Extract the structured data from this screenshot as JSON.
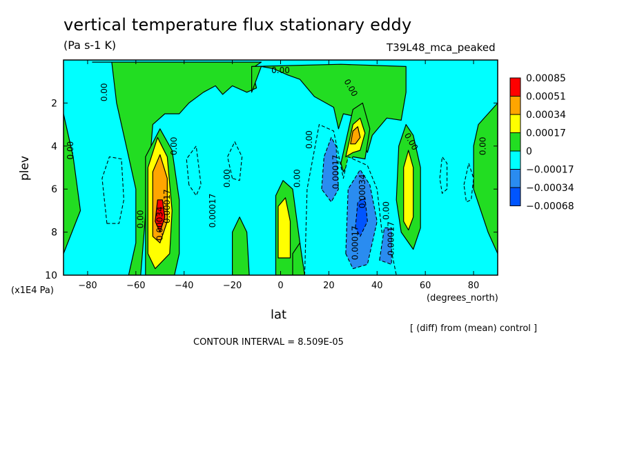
{
  "chart_data": {
    "type": "heatmap",
    "title": "vertical temperature flux stationary eddy",
    "units": "(Pa s-1 K)",
    "run_label": "T39L48_mca_peaked",
    "xlabel": "lat",
    "x_unit": "(degrees_north)",
    "ylabel": "plev",
    "y_unit": "(x1E4 Pa)",
    "xlim": [
      -90,
      90
    ],
    "ylim": [
      10,
      0
    ],
    "x_ticks": [
      -80,
      -60,
      -40,
      -20,
      0,
      20,
      40,
      60,
      80
    ],
    "y_ticks": [
      2,
      4,
      6,
      8,
      10
    ],
    "colorbar": {
      "colors": [
        "#0055ff",
        "#2a8cf0",
        "#00ffff",
        "#22dd22",
        "#ffff00",
        "#ffa500",
        "#ff0000"
      ],
      "labels": [
        "-0.00068",
        "-0.00034",
        "-0.00017",
        "0",
        "0.00017",
        "0.00034",
        "0.00051",
        "0.00085"
      ]
    },
    "background_color": "#00ffff",
    "regions": [
      {
        "level": "0",
        "points": [
          [
            -90,
            2.5
          ],
          [
            -86,
            4.5
          ],
          [
            -83,
            7
          ],
          [
            -90,
            9
          ]
        ]
      },
      {
        "level": "0",
        "points": [
          [
            -78,
            0.1
          ],
          [
            -70,
            0.1
          ],
          [
            -68,
            2
          ],
          [
            -64,
            4
          ],
          [
            -60,
            6
          ],
          [
            -60,
            8.5
          ],
          [
            -63,
            10
          ],
          [
            -58,
            10
          ],
          [
            -53,
            3
          ],
          [
            -48,
            2.5
          ],
          [
            -42,
            2.5
          ],
          [
            -38,
            2
          ],
          [
            -32,
            1.5
          ],
          [
            -27,
            1.2
          ],
          [
            -24,
            1.6
          ],
          [
            -20,
            1.2
          ],
          [
            -14,
            1.5
          ],
          [
            -10,
            1.3
          ],
          [
            -12,
            0.4
          ],
          [
            -8,
            0.1
          ],
          [
            -78,
            0.1
          ]
        ]
      },
      {
        "level": "0",
        "points": [
          [
            -12,
            1.5
          ],
          [
            -8,
            0.3
          ],
          [
            -3,
            0.4
          ],
          [
            3,
            0.7
          ],
          [
            8,
            0.9
          ],
          [
            14,
            1.7
          ],
          [
            22,
            2.2
          ],
          [
            24,
            3.2
          ],
          [
            26,
            2.5
          ],
          [
            30,
            2.6
          ],
          [
            36,
            4.3
          ],
          [
            38,
            3.5
          ],
          [
            44,
            2.7
          ],
          [
            50,
            2.8
          ],
          [
            52,
            1.5
          ],
          [
            52,
            0.3
          ],
          [
            25,
            0.2
          ],
          [
            -12,
            0.3
          ]
        ]
      },
      {
        "level": "0",
        "points": [
          [
            -56,
            9.6
          ],
          [
            -56,
            4.5
          ],
          [
            -50,
            3.2
          ],
          [
            -45,
            4.2
          ],
          [
            -42,
            6.5
          ],
          [
            -42,
            9
          ],
          [
            -44,
            10
          ],
          [
            -56,
            10
          ]
        ]
      },
      {
        "level": "0",
        "points": [
          [
            -2,
            10
          ],
          [
            -2,
            6.3
          ],
          [
            1,
            5.6
          ],
          [
            5,
            6
          ],
          [
            8,
            8.5
          ],
          [
            9,
            10
          ]
        ]
      },
      {
        "level": "0",
        "points": [
          [
            25,
            4.8
          ],
          [
            30,
            2.3
          ],
          [
            34,
            2
          ],
          [
            37,
            3.2
          ],
          [
            35,
            4.6
          ],
          [
            30,
            4.5
          ],
          [
            26,
            5.2
          ]
        ]
      },
      {
        "level": "0",
        "points": [
          [
            48,
            6.5
          ],
          [
            49,
            4
          ],
          [
            52,
            3
          ],
          [
            55,
            3.5
          ],
          [
            58,
            5
          ],
          [
            58,
            7.8
          ],
          [
            55,
            8.8
          ],
          [
            50,
            8
          ]
        ]
      },
      {
        "level": "0",
        "points": [
          [
            80,
            4
          ],
          [
            82,
            3
          ],
          [
            86,
            2.5
          ],
          [
            90,
            2
          ],
          [
            90,
            9
          ],
          [
            86,
            8
          ],
          [
            80,
            6
          ]
        ]
      },
      {
        "level": "0",
        "points": [
          [
            -20,
            10
          ],
          [
            -20,
            8
          ],
          [
            -17,
            7.3
          ],
          [
            -14,
            8
          ],
          [
            -13,
            10
          ]
        ]
      },
      {
        "level": "0",
        "points": [
          [
            5,
            10
          ],
          [
            5,
            9
          ],
          [
            8,
            8.5
          ],
          [
            10,
            10
          ]
        ]
      },
      {
        "level": "0.00017",
        "points": [
          [
            -55,
            9
          ],
          [
            -55,
            5
          ],
          [
            -51,
            3.6
          ],
          [
            -47,
            4.5
          ],
          [
            -45,
            7
          ],
          [
            -46,
            9
          ],
          [
            -52,
            9.7
          ]
        ]
      },
      {
        "level": "0.00034",
        "points": [
          [
            -53,
            8.2
          ],
          [
            -53,
            5.2
          ],
          [
            -50,
            4.4
          ],
          [
            -47,
            5.5
          ],
          [
            -47,
            7.5
          ],
          [
            -50,
            8.5
          ]
        ]
      },
      {
        "level": "0.00051",
        "points": [
          [
            -52,
            7.5
          ],
          [
            -51,
            6.5
          ],
          [
            -49,
            6.5
          ],
          [
            -48,
            7.3
          ],
          [
            -50,
            8
          ]
        ]
      },
      {
        "level": "0.00017",
        "points": [
          [
            -1,
            9.2
          ],
          [
            -1,
            6.8
          ],
          [
            2,
            6.4
          ],
          [
            4,
            7.5
          ],
          [
            4,
            9.2
          ]
        ]
      },
      {
        "level": "0.00017",
        "points": [
          [
            27,
            4.5
          ],
          [
            30,
            3
          ],
          [
            33,
            2.7
          ],
          [
            35,
            3.4
          ],
          [
            33,
            4.2
          ],
          [
            30,
            4.3
          ]
        ]
      },
      {
        "level": "0.00034",
        "points": [
          [
            29,
            3.9
          ],
          [
            30,
            3.3
          ],
          [
            32,
            3.1
          ],
          [
            33,
            3.6
          ],
          [
            31,
            3.9
          ]
        ]
      },
      {
        "level": "0.00017",
        "points": [
          [
            51,
            7.5
          ],
          [
            51,
            5
          ],
          [
            53,
            4.2
          ],
          [
            55,
            5
          ],
          [
            55,
            7.3
          ],
          [
            53,
            7.9
          ]
        ]
      },
      {
        "level": "-0.00017",
        "points": [
          [
            -72,
            7.6
          ],
          [
            -74,
            5.5
          ],
          [
            -71,
            4.5
          ],
          [
            -66,
            4.6
          ],
          [
            -65,
            6.5
          ],
          [
            -67,
            7.6
          ]
        ]
      },
      {
        "level": "-0.00017",
        "points": [
          [
            -38,
            5.8
          ],
          [
            -39,
            4.6
          ],
          [
            -35,
            4
          ],
          [
            -33,
            5.8
          ],
          [
            -35,
            6.3
          ]
        ]
      },
      {
        "level": "-0.00017",
        "points": [
          [
            -20,
            5.5
          ],
          [
            -22,
            4.5
          ],
          [
            -19,
            3.8
          ],
          [
            -16,
            4.5
          ],
          [
            -17,
            5.6
          ]
        ]
      },
      {
        "level": "-0.00017",
        "points": [
          [
            10,
            10
          ],
          [
            11,
            6
          ],
          [
            16,
            3
          ],
          [
            22,
            3.3
          ],
          [
            26,
            5.5
          ],
          [
            28,
            4.5
          ],
          [
            36,
            4.9
          ],
          [
            40,
            6
          ],
          [
            42,
            8
          ],
          [
            46,
            8.9
          ],
          [
            48,
            10
          ]
        ]
      },
      {
        "level": "-0.00034",
        "points": [
          [
            17,
            6
          ],
          [
            18,
            4.5
          ],
          [
            21,
            3.6
          ],
          [
            23,
            4
          ],
          [
            24,
            6
          ],
          [
            21,
            6.6
          ]
        ]
      },
      {
        "level": "-0.00034",
        "points": [
          [
            27,
            9
          ],
          [
            28,
            6
          ],
          [
            33,
            5.1
          ],
          [
            37,
            5.8
          ],
          [
            40,
            7.5
          ],
          [
            36,
            9.5
          ],
          [
            30,
            9.7
          ]
        ]
      },
      {
        "level": "-0.00034",
        "points": [
          [
            41,
            9.3
          ],
          [
            43,
            7.8
          ],
          [
            46,
            7.8
          ],
          [
            46,
            9.5
          ]
        ]
      },
      {
        "level": "-0.00068",
        "points": [
          [
            31,
            7.8
          ],
          [
            32,
            6.6
          ],
          [
            35,
            6.4
          ],
          [
            36,
            7.5
          ],
          [
            33,
            8.2
          ]
        ]
      },
      {
        "level": "-0.00017",
        "points": [
          [
            66,
            5.5
          ],
          [
            67,
            4.5
          ],
          [
            69,
            4.8
          ],
          [
            69,
            6
          ],
          [
            67,
            6.2
          ]
        ]
      },
      {
        "level": "-0.00017",
        "points": [
          [
            76,
            5.8
          ],
          [
            78,
            4.8
          ],
          [
            80,
            5.5
          ],
          [
            79,
            6.5
          ],
          [
            77,
            6.6
          ]
        ]
      }
    ],
    "contour_labels": [
      {
        "text": "0.00",
        "lat": -73,
        "plev": 1.5,
        "rotate": -90
      },
      {
        "text": "0.00",
        "lat": -87,
        "plev": 4.2,
        "rotate": -90
      },
      {
        "text": "0.00",
        "lat": -58,
        "plev": 7.4,
        "rotate": -90
      },
      {
        "text": "0.00",
        "lat": -44,
        "plev": 4.0,
        "rotate": -90
      },
      {
        "text": "0.00017",
        "lat": -47,
        "plev": 6.8,
        "rotate": -90
      },
      {
        "text": "0.00034",
        "lat": -50,
        "plev": 7.6,
        "rotate": -90
      },
      {
        "text": "0.00017",
        "lat": -28,
        "plev": 7.0,
        "rotate": -90
      },
      {
        "text": "0.00",
        "lat": -22,
        "plev": 5.5,
        "rotate": -90
      },
      {
        "text": "0.00",
        "lat": 0,
        "plev": 0.5,
        "rotate": 0
      },
      {
        "text": "0.00",
        "lat": 7,
        "plev": 5.5,
        "rotate": -90
      },
      {
        "text": "0.00",
        "lat": 12,
        "plev": 3.7,
        "rotate": -90
      },
      {
        "text": "0.00",
        "lat": 29,
        "plev": 1.3,
        "rotate": 60
      },
      {
        "text": "0.00017",
        "lat": 23,
        "plev": 5.2,
        "rotate": -90
      },
      {
        "text": "0.00034",
        "lat": 34,
        "plev": 6.1,
        "rotate": -90
      },
      {
        "text": "0.00017",
        "lat": 31,
        "plev": 8.5,
        "rotate": -90
      },
      {
        "text": "0.00",
        "lat": 44,
        "plev": 7.0,
        "rotate": -90
      },
      {
        "text": "0.00017",
        "lat": 46,
        "plev": 8.3,
        "rotate": -90
      },
      {
        "text": "0.00",
        "lat": 54,
        "plev": 3.8,
        "rotate": 60
      },
      {
        "text": "0.00",
        "lat": 84,
        "plev": 4.0,
        "rotate": -90
      }
    ]
  },
  "annotations": {
    "diff_note": "[ (diff) from (mean) control ]",
    "contour_interval": "CONTOUR INTERVAL = 8.509E-05"
  }
}
